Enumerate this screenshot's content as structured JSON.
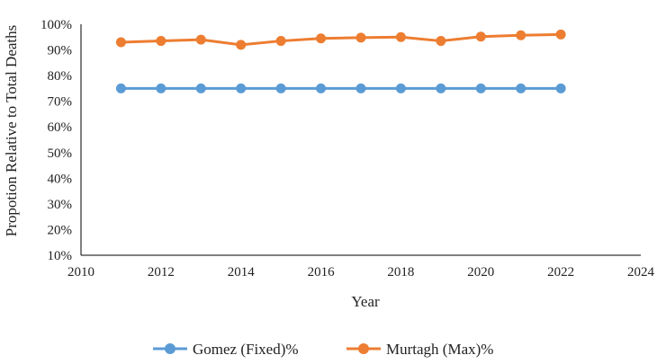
{
  "chart_data": {
    "type": "line",
    "title": "",
    "xlabel": "Year",
    "ylabel": "Propotion Relative to Total Deaths",
    "xlim": [
      2010,
      2024
    ],
    "ylim": [
      0.1,
      1.0
    ],
    "x_ticks": [
      2010,
      2012,
      2014,
      2016,
      2018,
      2020,
      2022,
      2024
    ],
    "y_ticks": [
      "10%",
      "20%",
      "30%",
      "40%",
      "50%",
      "60%",
      "70%",
      "80%",
      "90%",
      "100%"
    ],
    "grid": false,
    "legend_position": "bottom",
    "x": [
      2011,
      2012,
      2013,
      2014,
      2015,
      2016,
      2017,
      2018,
      2019,
      2020,
      2021,
      2022
    ],
    "series": [
      {
        "name": "Gomez (Fixed)%",
        "color": "#5B9BD5",
        "values": [
          0.75,
          0.75,
          0.75,
          0.75,
          0.75,
          0.75,
          0.75,
          0.75,
          0.75,
          0.75,
          0.75,
          0.75
        ]
      },
      {
        "name": "Murtagh (Max)%",
        "color": "#ED7D31",
        "values": [
          0.93,
          0.935,
          0.94,
          0.92,
          0.935,
          0.945,
          0.948,
          0.95,
          0.935,
          0.952,
          0.957,
          0.96
        ]
      }
    ]
  }
}
